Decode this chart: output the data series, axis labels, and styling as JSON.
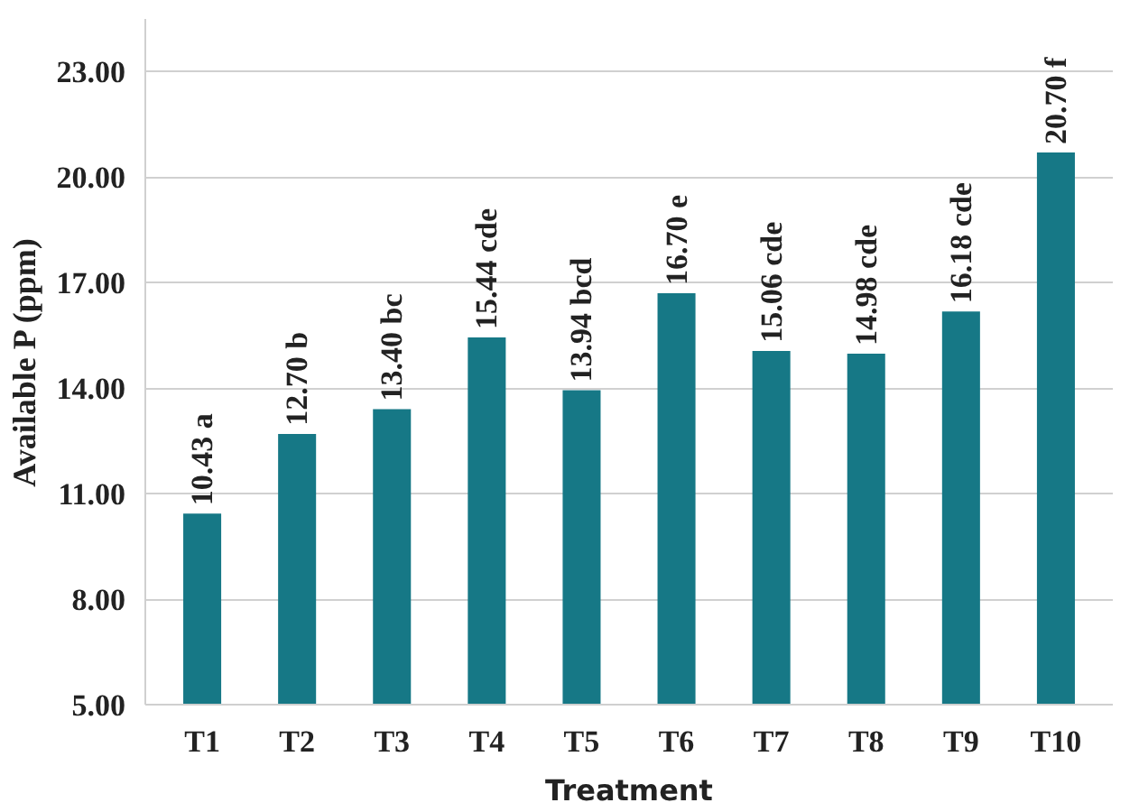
{
  "chart_data": {
    "type": "bar",
    "xlabel": "Treatment",
    "ylabel": "Available P (ppm)",
    "categories": [
      "T1",
      "T2",
      "T3",
      "T4",
      "T5",
      "T6",
      "T7",
      "T8",
      "T9",
      "T10"
    ],
    "values": [
      10.43,
      12.7,
      13.4,
      15.44,
      13.94,
      16.7,
      15.06,
      14.98,
      16.18,
      20.7
    ],
    "value_labels": [
      "10.43 a",
      "12.70 b",
      "13.40 bc",
      "15.44 cde",
      "13.94 bcd",
      "16.70 e",
      "15.06 cde",
      "14.98 cde",
      "16.18 cde",
      "20.70 f"
    ],
    "color": "#167886",
    "ylim": [
      5,
      24.5
    ],
    "yticks": [
      {
        "value": 5,
        "label": "5.00"
      },
      {
        "value": 8,
        "label": "8.00"
      },
      {
        "value": 11,
        "label": "11.00"
      },
      {
        "value": 14,
        "label": "14.00"
      },
      {
        "value": 17,
        "label": "17.00"
      },
      {
        "value": 20,
        "label": "20.00"
      },
      {
        "value": 23,
        "label": "23.00"
      }
    ],
    "grid": "y"
  }
}
